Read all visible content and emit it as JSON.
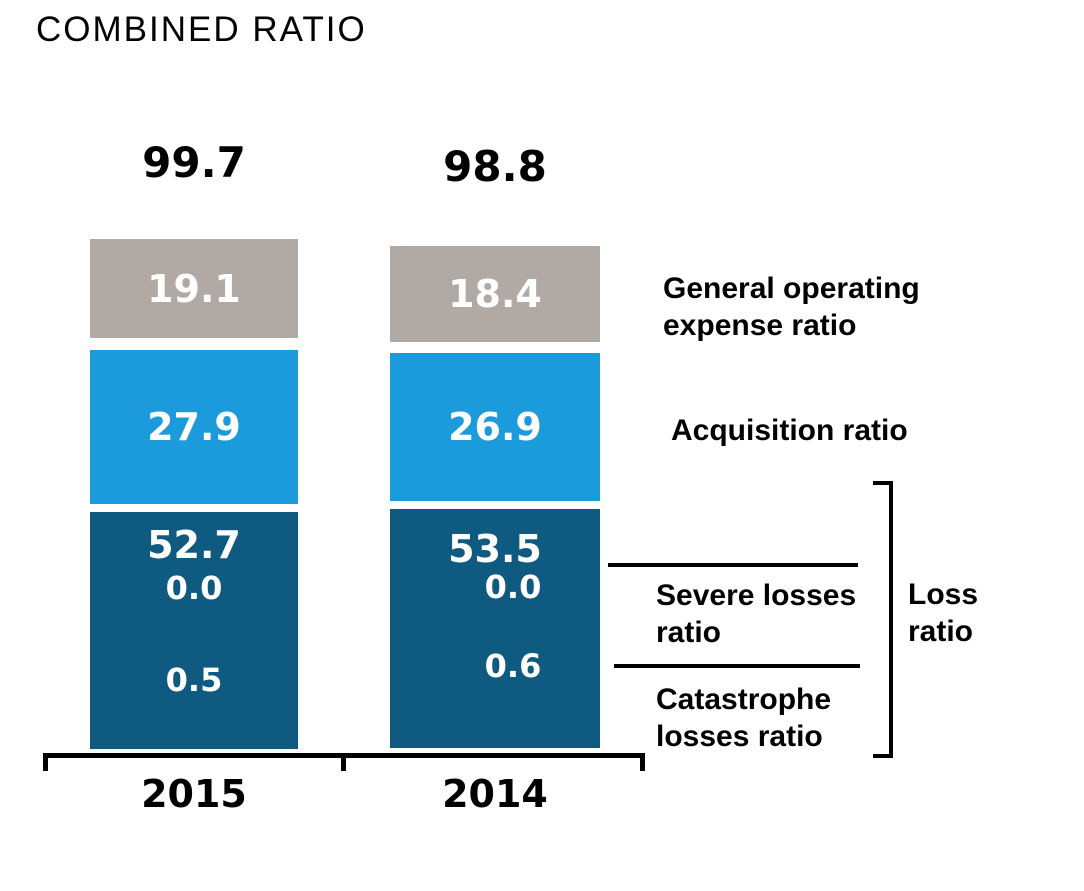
{
  "title": "COMBINED RATIO",
  "chart_data": {
    "type": "bar",
    "stacked": true,
    "title": "COMBINED RATIO",
    "unit": "percent",
    "grid": false,
    "legend_position": "right",
    "categories": [
      "2015",
      "2014"
    ],
    "totals": [
      "99.7",
      "98.8"
    ],
    "series": [
      {
        "name": "General operating expense ratio",
        "color": "#b1a9a3",
        "values": [
          "19.1",
          "18.4"
        ]
      },
      {
        "name": "Acquisition ratio",
        "color": "#1c9bdc",
        "values": [
          "27.9",
          "26.9"
        ]
      },
      {
        "name": "Loss ratio",
        "color": "#0e5a80",
        "values": [
          "52.7",
          "53.5"
        ]
      },
      {
        "name": "Severe losses ratio",
        "color": "#0e5a80",
        "values": [
          "0.0",
          "0.0"
        ]
      },
      {
        "name": "Catastrophe losses ratio",
        "color": "#0e5a80",
        "values": [
          "0.5",
          "0.6"
        ]
      }
    ]
  }
}
